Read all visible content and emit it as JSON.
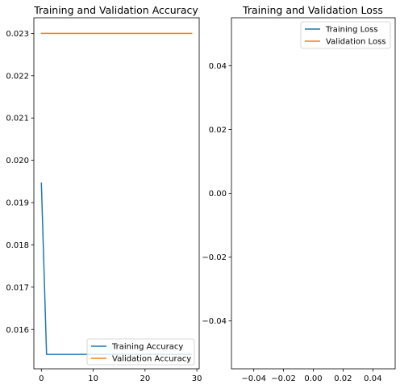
{
  "chart_data": [
    {
      "type": "line",
      "title": "Training and Validation Accuracy",
      "xlabel": "",
      "ylabel": "",
      "xlim": [
        -1.45,
        30.45
      ],
      "ylim": [
        0.01507,
        0.02337
      ],
      "xticks": [
        0,
        10,
        20,
        30
      ],
      "xtick_labels": [
        "0",
        "10",
        "20",
        "30"
      ],
      "yticks": [
        0.016,
        0.017,
        0.018,
        0.019,
        0.02,
        0.021,
        0.022,
        0.023
      ],
      "ytick_labels": [
        "0.016",
        "0.017",
        "0.018",
        "0.019",
        "0.020",
        "0.021",
        "0.022",
        "0.023"
      ],
      "grid": false,
      "legend_position": "lower-right",
      "series": [
        {
          "name": "Training Accuracy",
          "color": "#1f77b4",
          "x": [
            0,
            1,
            2,
            3,
            4,
            5,
            6,
            7,
            8,
            9,
            10,
            11,
            12,
            13,
            14,
            15,
            16,
            17,
            18,
            19,
            20,
            21,
            22,
            23,
            24,
            25,
            26,
            27,
            28,
            29
          ],
          "y": [
            0.01946,
            0.01541,
            0.01541,
            0.01541,
            0.01541,
            0.01541,
            0.01541,
            0.01541,
            0.01541,
            0.01541,
            0.01541,
            0.01541,
            0.01541,
            0.01541,
            0.01541,
            0.01541,
            0.01541,
            0.01541,
            0.01541,
            0.01541,
            0.01541,
            0.01541,
            0.01541,
            0.01541,
            0.01541,
            0.01541,
            0.01541,
            0.01541,
            0.01541,
            0.01541
          ]
        },
        {
          "name": "Validation Accuracy",
          "color": "#ff7f0e",
          "x": [
            0,
            1,
            2,
            3,
            4,
            5,
            6,
            7,
            8,
            9,
            10,
            11,
            12,
            13,
            14,
            15,
            16,
            17,
            18,
            19,
            20,
            21,
            22,
            23,
            24,
            25,
            26,
            27,
            28,
            29
          ],
          "y": [
            0.023,
            0.023,
            0.023,
            0.023,
            0.023,
            0.023,
            0.023,
            0.023,
            0.023,
            0.023,
            0.023,
            0.023,
            0.023,
            0.023,
            0.023,
            0.023,
            0.023,
            0.023,
            0.023,
            0.023,
            0.023,
            0.023,
            0.023,
            0.023,
            0.023,
            0.023,
            0.023,
            0.023,
            0.023,
            0.023
          ]
        }
      ]
    },
    {
      "type": "line",
      "title": "Training and Validation Loss",
      "xlabel": "",
      "ylabel": "",
      "xlim": [
        -0.055,
        0.055
      ],
      "ylim": [
        -0.055,
        0.055
      ],
      "xticks": [
        -0.04,
        -0.02,
        0.0,
        0.02,
        0.04
      ],
      "xtick_labels": [
        "−0.04",
        "−0.02",
        "0.00",
        "0.02",
        "0.04"
      ],
      "yticks": [
        -0.04,
        -0.02,
        0.0,
        0.02,
        0.04
      ],
      "ytick_labels": [
        "−0.04",
        "−0.02",
        "0.00",
        "0.02",
        "0.04"
      ],
      "grid": false,
      "legend_position": "upper-right",
      "series": [
        {
          "name": "Training Loss",
          "color": "#1f77b4",
          "x": [],
          "y": []
        },
        {
          "name": "Validation Loss",
          "color": "#ff7f0e",
          "x": [],
          "y": []
        }
      ]
    }
  ]
}
